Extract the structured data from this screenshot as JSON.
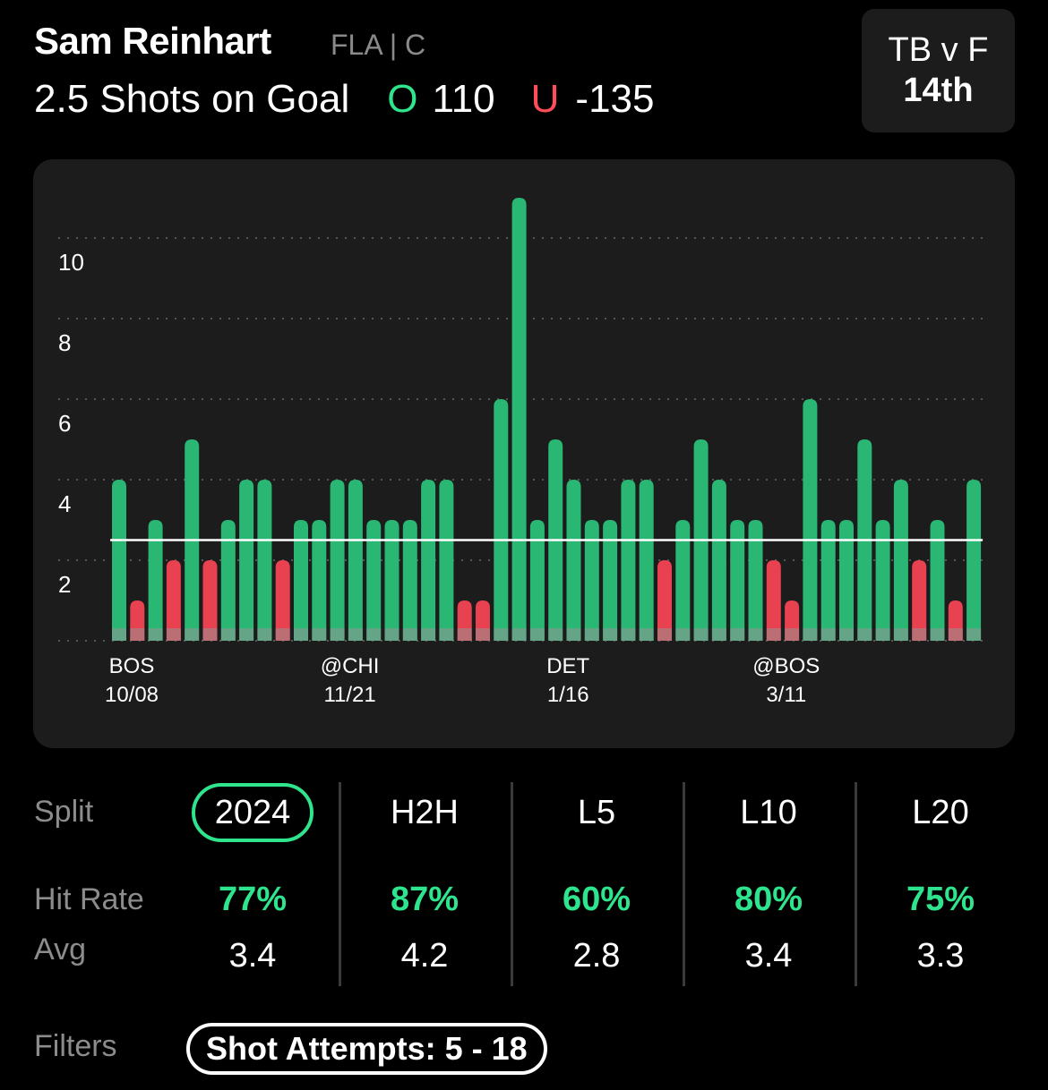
{
  "header": {
    "player_name": "Sam Reinhart",
    "player_meta": "FLA | C",
    "prop": "2.5 Shots on Goal",
    "over_label": "O",
    "over_odds": "110",
    "under_label": "U",
    "under_odds": "-135"
  },
  "matchup": {
    "teams": "TB v F",
    "rank": "14th"
  },
  "colors": {
    "hit": "#2ab673",
    "miss": "#e8414f",
    "accent": "#2ee58d",
    "line": "#ffffff"
  },
  "chart_data": {
    "type": "bar",
    "line_value": 2.5,
    "ylim": [
      0,
      10.5
    ],
    "yticks": [
      2,
      4,
      6,
      8,
      10
    ],
    "grid": true,
    "values": [
      4,
      1,
      3,
      2,
      5,
      2,
      3,
      4,
      4,
      2,
      3,
      3,
      4,
      4,
      3,
      3,
      3,
      4,
      4,
      1,
      1,
      6,
      11,
      3,
      5,
      4,
      3,
      3,
      4,
      4,
      2,
      3,
      5,
      4,
      3,
      3,
      2,
      1,
      6,
      3,
      3,
      5,
      3,
      4,
      2,
      3,
      1,
      4
    ],
    "x_labels": [
      {
        "index": 0,
        "team": "BOS",
        "date": "10/08"
      },
      {
        "index": 12,
        "team": "@CHI",
        "date": "11/21"
      },
      {
        "index": 24,
        "team": "DET",
        "date": "1/16"
      },
      {
        "index": 36,
        "team": "@BOS",
        "date": "3/11"
      }
    ]
  },
  "splits": {
    "row_labels": {
      "split": "Split",
      "hit_rate": "Hit Rate",
      "avg": "Avg"
    },
    "columns": [
      {
        "name": "2024",
        "hit_rate": "77%",
        "avg": "3.4"
      },
      {
        "name": "H2H",
        "hit_rate": "87%",
        "avg": "4.2"
      },
      {
        "name": "L5",
        "hit_rate": "60%",
        "avg": "2.8"
      },
      {
        "name": "L10",
        "hit_rate": "80%",
        "avg": "3.4"
      },
      {
        "name": "L20",
        "hit_rate": "75%",
        "avg": "3.3"
      }
    ]
  },
  "filters": {
    "label": "Filters",
    "chip": "Shot Attempts: 5 - 18"
  }
}
